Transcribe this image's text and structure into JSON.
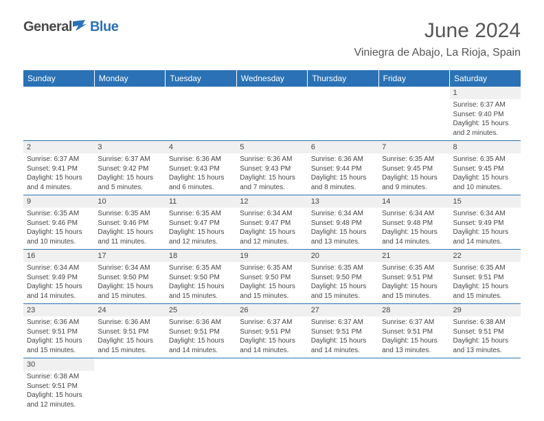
{
  "logo": {
    "part1": "General",
    "part2": "Blue"
  },
  "title": "June 2024",
  "location": "Viniegra de Abajo, La Rioja, Spain",
  "colors": {
    "header_bg": "#2a72b5",
    "header_text": "#ffffff",
    "daynum_bg": "#f0f0f0",
    "border": "#2a72b5",
    "text": "#444444",
    "title_text": "#555555"
  },
  "typography": {
    "title_fontsize": 30,
    "location_fontsize": 16,
    "dayhead_fontsize": 12,
    "body_fontsize": 10
  },
  "calendar": {
    "day_headers": [
      "Sunday",
      "Monday",
      "Tuesday",
      "Wednesday",
      "Thursday",
      "Friday",
      "Saturday"
    ],
    "weeks": [
      [
        {
          "n": "",
          "sr": "",
          "ss": "",
          "dl": ""
        },
        {
          "n": "",
          "sr": "",
          "ss": "",
          "dl": ""
        },
        {
          "n": "",
          "sr": "",
          "ss": "",
          "dl": ""
        },
        {
          "n": "",
          "sr": "",
          "ss": "",
          "dl": ""
        },
        {
          "n": "",
          "sr": "",
          "ss": "",
          "dl": ""
        },
        {
          "n": "",
          "sr": "",
          "ss": "",
          "dl": ""
        },
        {
          "n": "1",
          "sr": "Sunrise: 6:37 AM",
          "ss": "Sunset: 9:40 PM",
          "dl": "Daylight: 15 hours and 2 minutes."
        }
      ],
      [
        {
          "n": "2",
          "sr": "Sunrise: 6:37 AM",
          "ss": "Sunset: 9:41 PM",
          "dl": "Daylight: 15 hours and 4 minutes."
        },
        {
          "n": "3",
          "sr": "Sunrise: 6:37 AM",
          "ss": "Sunset: 9:42 PM",
          "dl": "Daylight: 15 hours and 5 minutes."
        },
        {
          "n": "4",
          "sr": "Sunrise: 6:36 AM",
          "ss": "Sunset: 9:43 PM",
          "dl": "Daylight: 15 hours and 6 minutes."
        },
        {
          "n": "5",
          "sr": "Sunrise: 6:36 AM",
          "ss": "Sunset: 9:43 PM",
          "dl": "Daylight: 15 hours and 7 minutes."
        },
        {
          "n": "6",
          "sr": "Sunrise: 6:36 AM",
          "ss": "Sunset: 9:44 PM",
          "dl": "Daylight: 15 hours and 8 minutes."
        },
        {
          "n": "7",
          "sr": "Sunrise: 6:35 AM",
          "ss": "Sunset: 9:45 PM",
          "dl": "Daylight: 15 hours and 9 minutes."
        },
        {
          "n": "8",
          "sr": "Sunrise: 6:35 AM",
          "ss": "Sunset: 9:45 PM",
          "dl": "Daylight: 15 hours and 10 minutes."
        }
      ],
      [
        {
          "n": "9",
          "sr": "Sunrise: 6:35 AM",
          "ss": "Sunset: 9:46 PM",
          "dl": "Daylight: 15 hours and 10 minutes."
        },
        {
          "n": "10",
          "sr": "Sunrise: 6:35 AM",
          "ss": "Sunset: 9:46 PM",
          "dl": "Daylight: 15 hours and 11 minutes."
        },
        {
          "n": "11",
          "sr": "Sunrise: 6:35 AM",
          "ss": "Sunset: 9:47 PM",
          "dl": "Daylight: 15 hours and 12 minutes."
        },
        {
          "n": "12",
          "sr": "Sunrise: 6:34 AM",
          "ss": "Sunset: 9:47 PM",
          "dl": "Daylight: 15 hours and 12 minutes."
        },
        {
          "n": "13",
          "sr": "Sunrise: 6:34 AM",
          "ss": "Sunset: 9:48 PM",
          "dl": "Daylight: 15 hours and 13 minutes."
        },
        {
          "n": "14",
          "sr": "Sunrise: 6:34 AM",
          "ss": "Sunset: 9:48 PM",
          "dl": "Daylight: 15 hours and 14 minutes."
        },
        {
          "n": "15",
          "sr": "Sunrise: 6:34 AM",
          "ss": "Sunset: 9:49 PM",
          "dl": "Daylight: 15 hours and 14 minutes."
        }
      ],
      [
        {
          "n": "16",
          "sr": "Sunrise: 6:34 AM",
          "ss": "Sunset: 9:49 PM",
          "dl": "Daylight: 15 hours and 14 minutes."
        },
        {
          "n": "17",
          "sr": "Sunrise: 6:34 AM",
          "ss": "Sunset: 9:50 PM",
          "dl": "Daylight: 15 hours and 15 minutes."
        },
        {
          "n": "18",
          "sr": "Sunrise: 6:35 AM",
          "ss": "Sunset: 9:50 PM",
          "dl": "Daylight: 15 hours and 15 minutes."
        },
        {
          "n": "19",
          "sr": "Sunrise: 6:35 AM",
          "ss": "Sunset: 9:50 PM",
          "dl": "Daylight: 15 hours and 15 minutes."
        },
        {
          "n": "20",
          "sr": "Sunrise: 6:35 AM",
          "ss": "Sunset: 9:50 PM",
          "dl": "Daylight: 15 hours and 15 minutes."
        },
        {
          "n": "21",
          "sr": "Sunrise: 6:35 AM",
          "ss": "Sunset: 9:51 PM",
          "dl": "Daylight: 15 hours and 15 minutes."
        },
        {
          "n": "22",
          "sr": "Sunrise: 6:35 AM",
          "ss": "Sunset: 9:51 PM",
          "dl": "Daylight: 15 hours and 15 minutes."
        }
      ],
      [
        {
          "n": "23",
          "sr": "Sunrise: 6:36 AM",
          "ss": "Sunset: 9:51 PM",
          "dl": "Daylight: 15 hours and 15 minutes."
        },
        {
          "n": "24",
          "sr": "Sunrise: 6:36 AM",
          "ss": "Sunset: 9:51 PM",
          "dl": "Daylight: 15 hours and 15 minutes."
        },
        {
          "n": "25",
          "sr": "Sunrise: 6:36 AM",
          "ss": "Sunset: 9:51 PM",
          "dl": "Daylight: 15 hours and 14 minutes."
        },
        {
          "n": "26",
          "sr": "Sunrise: 6:37 AM",
          "ss": "Sunset: 9:51 PM",
          "dl": "Daylight: 15 hours and 14 minutes."
        },
        {
          "n": "27",
          "sr": "Sunrise: 6:37 AM",
          "ss": "Sunset: 9:51 PM",
          "dl": "Daylight: 15 hours and 14 minutes."
        },
        {
          "n": "28",
          "sr": "Sunrise: 6:37 AM",
          "ss": "Sunset: 9:51 PM",
          "dl": "Daylight: 15 hours and 13 minutes."
        },
        {
          "n": "29",
          "sr": "Sunrise: 6:38 AM",
          "ss": "Sunset: 9:51 PM",
          "dl": "Daylight: 15 hours and 13 minutes."
        }
      ],
      [
        {
          "n": "30",
          "sr": "Sunrise: 6:38 AM",
          "ss": "Sunset: 9:51 PM",
          "dl": "Daylight: 15 hours and 12 minutes."
        },
        {
          "n": "",
          "sr": "",
          "ss": "",
          "dl": ""
        },
        {
          "n": "",
          "sr": "",
          "ss": "",
          "dl": ""
        },
        {
          "n": "",
          "sr": "",
          "ss": "",
          "dl": ""
        },
        {
          "n": "",
          "sr": "",
          "ss": "",
          "dl": ""
        },
        {
          "n": "",
          "sr": "",
          "ss": "",
          "dl": ""
        },
        {
          "n": "",
          "sr": "",
          "ss": "",
          "dl": ""
        }
      ]
    ]
  }
}
